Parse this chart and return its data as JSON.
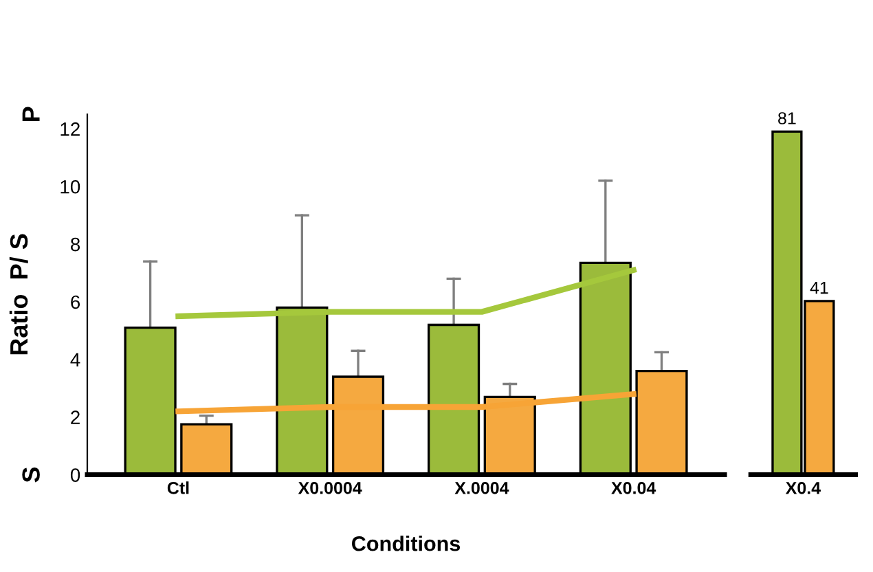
{
  "chart_data": [
    {
      "type": "bar",
      "xlabel": "Conditions",
      "ylabel": "Ratio  P/ S",
      "categories": [
        "Ctl",
        "X0.0004",
        "X.0004",
        "X0.04"
      ],
      "series": [
        {
          "color": "#9bbb3b",
          "values": [
            5.1,
            5.8,
            5.2,
            7.35
          ],
          "errors": [
            [
              5.1,
              7.4
            ],
            [
              5.8,
              9.0
            ],
            [
              5.2,
              6.8
            ],
            [
              7.35,
              10.2
            ]
          ]
        },
        {
          "color": "#f5a940",
          "values": [
            1.75,
            3.4,
            2.7,
            3.6
          ],
          "errors": [
            [
              1.75,
              2.05
            ],
            [
              3.4,
              4.3
            ],
            [
              2.7,
              3.15
            ],
            [
              3.6,
              4.25
            ]
          ]
        },
        {
          "type": "line",
          "color": "#a5c83c",
          "values": [
            5.5,
            5.65,
            5.65,
            7.1
          ]
        },
        {
          "type": "line",
          "color": "#f7a436",
          "values": [
            2.2,
            2.35,
            2.35,
            2.8
          ]
        }
      ],
      "ylim": [
        0,
        12.5
      ],
      "yticks": [
        0,
        2,
        4,
        6,
        8,
        10,
        12
      ],
      "annotations": [
        "P",
        "S"
      ]
    },
    {
      "type": "bar",
      "categories": [
        "X0.4"
      ],
      "series": [
        {
          "color": "#9bbb3b",
          "values": [
            81
          ]
        },
        {
          "color": "#f5a940",
          "values": [
            41
          ]
        }
      ],
      "tick_labels": "x",
      "data_labels": true
    }
  ]
}
